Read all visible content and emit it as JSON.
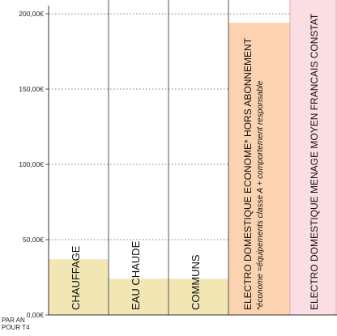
{
  "chart_data": {
    "type": "bar",
    "title": "",
    "xlabel": "",
    "ylabel": "",
    "ylim": [
      0,
      200
    ],
    "yticks": [
      0,
      50,
      100,
      150,
      200
    ],
    "ytick_labels": [
      "0,00€",
      "50,00€",
      "100,00€",
      "150,00€",
      "200,00€"
    ],
    "y_unit_note": [
      "PAR AN",
      "POUR T4"
    ],
    "grid": "dotted-horizontal",
    "categories": [
      [
        "CHAUFFAGE"
      ],
      [
        "EAU CHAUDE"
      ],
      [
        "COMMUNS"
      ],
      [
        "ELECTRO DOMESTIQUE ECONOME* HORS ABONNEMENT",
        "*économe =équipements classe A + comportement responsable"
      ],
      [
        "ELECTRO DOMESTIQUE MENAGE MOYEN FRANCAIS CONSTAT"
      ]
    ],
    "values": [
      37,
      24,
      24,
      194,
      215
    ],
    "colors": [
      "#f2e6b5",
      "#f2e6b5",
      "#f2e6b5",
      "#fbd3b0",
      "#fbdde4"
    ],
    "border_colors": [
      "#7f7f7f",
      "#7f7f7f",
      "#7f7f7f",
      "#7f7f7f",
      "#e6a7b6"
    ]
  }
}
